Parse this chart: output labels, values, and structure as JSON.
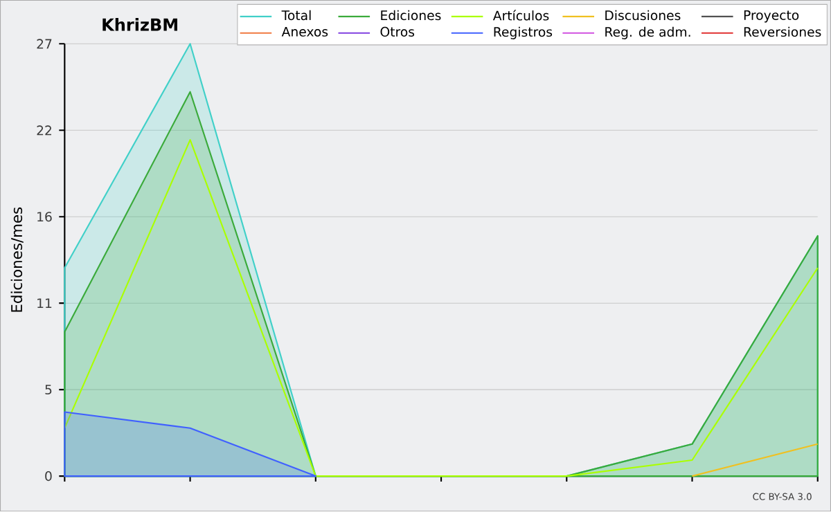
{
  "chart_data": {
    "type": "line",
    "title": "KhrizBM",
    "ylabel": "Ediciones/mes",
    "categories": [
      null,
      null,
      null,
      null,
      null,
      null,
      null
    ],
    "series": [
      {
        "name": "Total",
        "color": "#40d0c8",
        "type": "area",
        "values": [
          13,
          27,
          0,
          0,
          0,
          2,
          15
        ]
      },
      {
        "name": "Ediciones",
        "color": "#3aaa3a",
        "type": "area",
        "values": [
          9,
          24,
          0,
          0,
          0,
          2,
          15
        ]
      },
      {
        "name": "Artículos",
        "color": "#aaff00",
        "values": [
          3,
          21,
          0,
          0,
          0,
          1,
          13
        ]
      },
      {
        "name": "Discusiones",
        "color": "#f0c020",
        "values": [
          null,
          null,
          null,
          null,
          null,
          0,
          2
        ]
      },
      {
        "name": "Proyecto",
        "color": "#505050",
        "values": [
          null,
          null,
          null,
          null,
          null,
          null,
          null
        ]
      },
      {
        "name": "Anexos",
        "color": "#f07840",
        "values": [
          null,
          null,
          null,
          null,
          null,
          null,
          null
        ]
      },
      {
        "name": "Otros",
        "color": "#8040e0",
        "values": [
          null,
          null,
          null,
          null,
          null,
          null,
          null
        ]
      },
      {
        "name": "Registros",
        "color": "#4060ff",
        "type": "area",
        "values": [
          4,
          3,
          0,
          null,
          null,
          null,
          null
        ]
      },
      {
        "name": "Reg. de adm.",
        "color": "#d050e0",
        "values": [
          null,
          null,
          null,
          null,
          null,
          null,
          null
        ]
      },
      {
        "name": "Reversiones",
        "color": "#e03030",
        "values": [
          null,
          null,
          null,
          null,
          null,
          null,
          null
        ]
      }
    ],
    "ylim": [
      0,
      27
    ],
    "yticks": [
      0,
      {
        "value": 5.4,
        "label": "5"
      },
      {
        "value": 10.8,
        "label": "11"
      },
      {
        "value": 16.2,
        "label": "16"
      },
      {
        "value": 21.6,
        "label": "22"
      },
      27
    ],
    "grid": "y",
    "legend": "top right",
    "tick_labels": "y",
    "annotations": [
      "CC BY-SA 3.0"
    ]
  }
}
